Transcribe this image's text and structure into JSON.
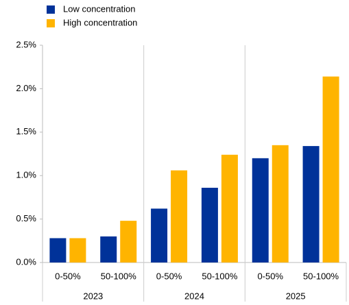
{
  "chart_data": {
    "type": "bar",
    "categories": [
      "0-50%",
      "50-100%",
      "0-50%",
      "50-100%",
      "0-50%",
      "50-100%"
    ],
    "category_groups": [
      "2023",
      "2024",
      "2025"
    ],
    "series": [
      {
        "name": "Low concentration",
        "color": "#003299",
        "values": [
          0.28,
          0.3,
          0.62,
          0.86,
          1.2,
          1.34
        ]
      },
      {
        "name": "High concentration",
        "color": "#ffb400",
        "values": [
          0.28,
          0.48,
          1.06,
          1.24,
          1.35,
          2.14
        ]
      }
    ],
    "ylim": [
      0,
      2.5
    ],
    "yticks": [
      {
        "value": 0,
        "label": "0.0%"
      },
      {
        "value": 0.5,
        "label": "0.5%"
      },
      {
        "value": 1,
        "label": "1.0%"
      },
      {
        "value": 1.5,
        "label": "1.5%"
      },
      {
        "value": 2,
        "label": "2.0%"
      },
      {
        "value": 2.5,
        "label": "2.5%"
      }
    ],
    "legend": "top-left"
  }
}
